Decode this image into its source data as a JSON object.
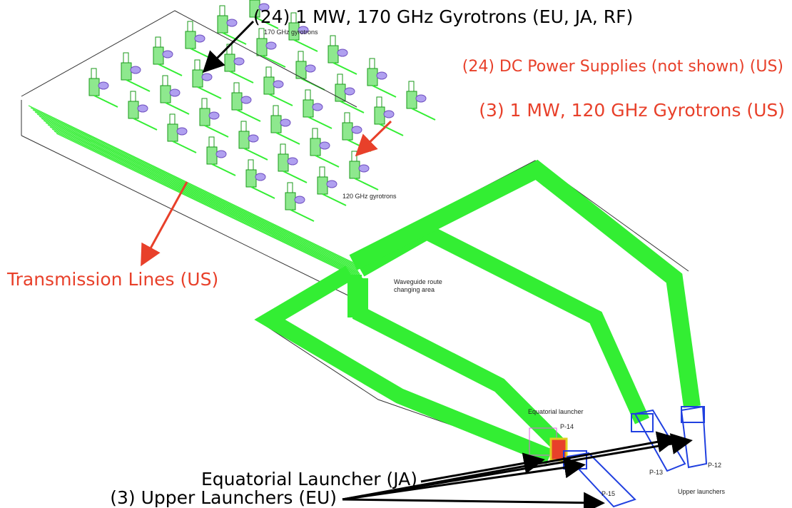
{
  "callouts": [
    {
      "label": "(24) 1 MW, 170 GHz Gyrotrons (EU, JA, RF)"
    },
    {
      "label": "(24) DC Power Supplies (not shown) (US)"
    },
    {
      "label": "(3) 1 MW, 120 GHz Gyrotrons (US)"
    },
    {
      "label": "Transmission Lines (US)"
    },
    {
      "label": "Equatorial Launcher (JA)"
    },
    {
      "label": "(3) Upper Launchers (EU)"
    }
  ],
  "drawing_labels": {
    "gyrotrons_170": "170 GHz gyrotrons",
    "gyrotrons_120": "120 GHz gyrotrons",
    "waveguide_area": [
      "Waveguide route",
      "changing area"
    ],
    "equatorial_launcher": "Equatorial launcher",
    "ports": [
      "P-14",
      "P-13",
      "P-12",
      "P-15"
    ],
    "upper_launchers": "Upper launchers"
  }
}
